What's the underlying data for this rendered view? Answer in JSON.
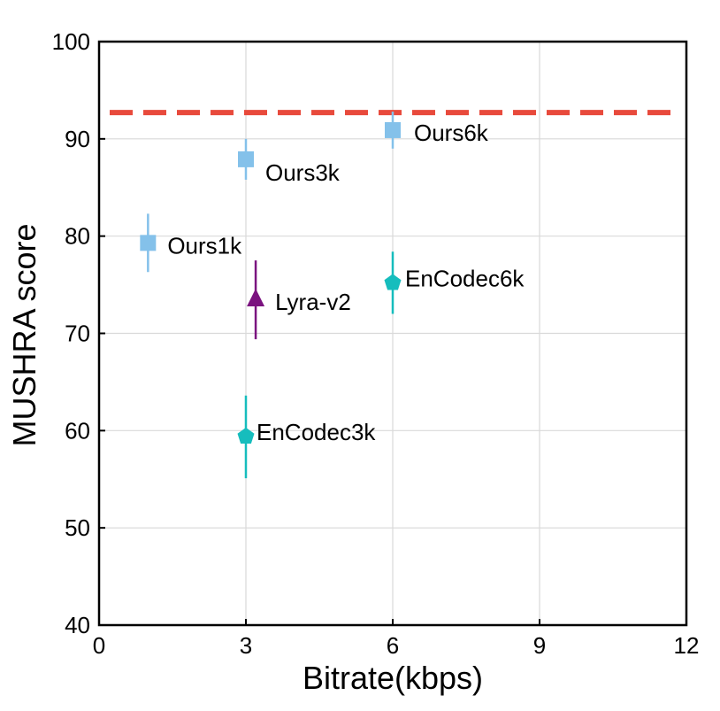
{
  "chart_data": {
    "type": "scatter",
    "title": "",
    "xlabel": "Bitrate(kbps)",
    "ylabel": "MUSHRA score",
    "xlim": [
      0,
      12
    ],
    "ylim": [
      40,
      100
    ],
    "xticks": [
      0,
      3,
      6,
      9,
      12
    ],
    "yticks": [
      40,
      50,
      60,
      70,
      80,
      90,
      100
    ],
    "grid": true,
    "reference_line": {
      "y": 92.7,
      "color": "#e84a3c",
      "style": "dashed"
    },
    "points": [
      {
        "label": "Ours1k",
        "x": 1,
        "y": 79.3,
        "err_low": 76.3,
        "err_high": 82.3,
        "marker": "square",
        "color": "#84c1ea"
      },
      {
        "label": "Ours3k",
        "x": 3,
        "y": 87.9,
        "err_low": 85.8,
        "err_high": 90.0,
        "marker": "square",
        "color": "#84c1ea"
      },
      {
        "label": "Ours6k",
        "x": 6,
        "y": 90.9,
        "err_low": 89.0,
        "err_high": 92.8,
        "marker": "square",
        "color": "#84c1ea"
      },
      {
        "label": "Lyra-v2",
        "x": 3.2,
        "y": 73.5,
        "err_low": 69.4,
        "err_high": 77.5,
        "marker": "triangle",
        "color": "#7b127f"
      },
      {
        "label": "EnCodec3k",
        "x": 3,
        "y": 59.4,
        "err_low": 55.1,
        "err_high": 63.6,
        "marker": "pentagon",
        "color": "#16bdbd"
      },
      {
        "label": "EnCodec6k",
        "x": 6,
        "y": 75.2,
        "err_low": 72.0,
        "err_high": 78.4,
        "marker": "pentagon",
        "color": "#16bdbd"
      }
    ]
  }
}
